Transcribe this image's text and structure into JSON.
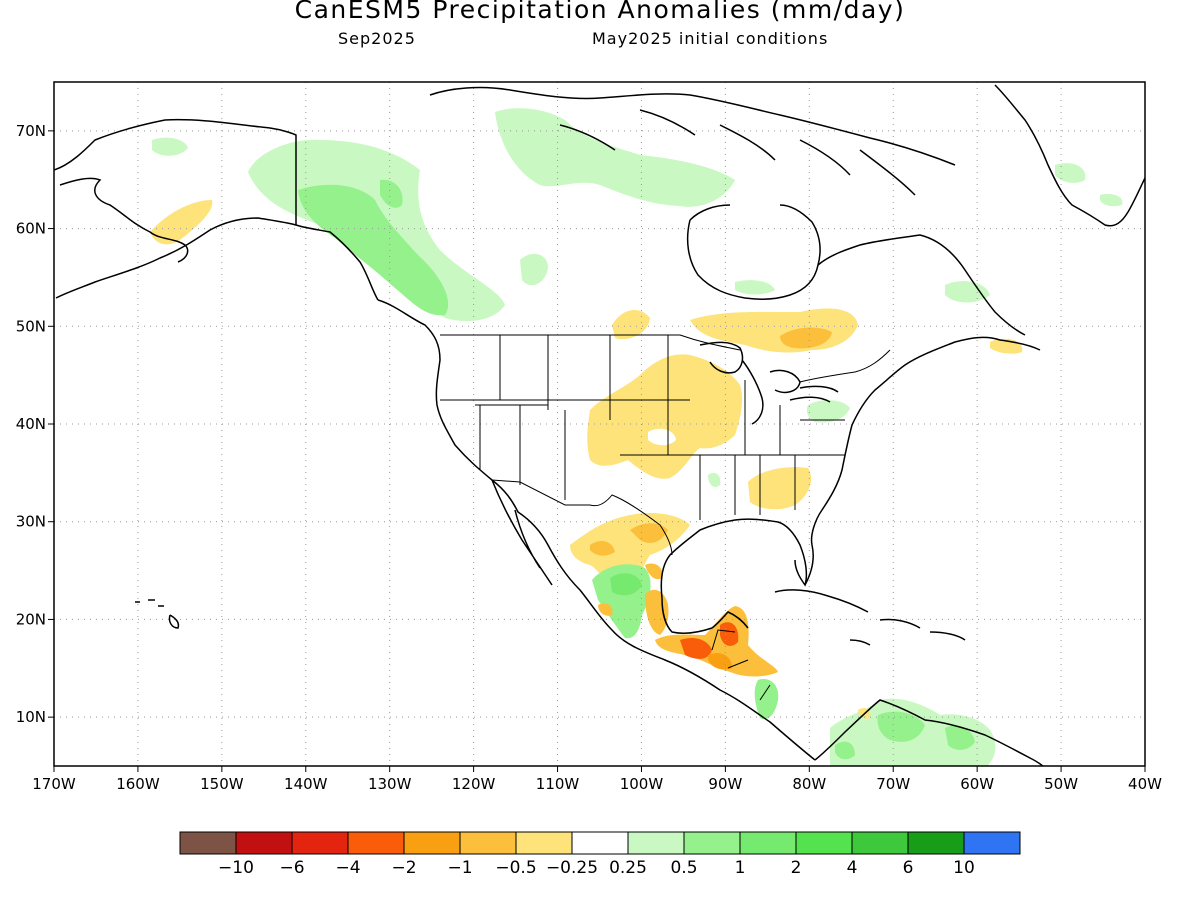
{
  "title": "CanESM5 Precipitation Anomalies (mm/day)",
  "subtitle_left": "Sep2025",
  "subtitle_right": "May2025 initial conditions",
  "map": {
    "lon_range": [
      -170,
      -40
    ],
    "lat_range": [
      5,
      75
    ],
    "gridlines": "dotted",
    "x_tick_labels": [
      "170W",
      "160W",
      "150W",
      "140W",
      "130W",
      "120W",
      "110W",
      "100W",
      "90W",
      "80W",
      "70W",
      "60W",
      "50W",
      "40W"
    ],
    "y_tick_labels": [
      "10N",
      "20N",
      "30N",
      "40N",
      "50N",
      "60N",
      "70N"
    ]
  },
  "colorbar": {
    "colors": [
      "#7d5345",
      "#c20f0f",
      "#e3240f",
      "#fa5d0a",
      "#f99f12",
      "#fbbf3c",
      "#fde37a",
      "#ffffff",
      "#c9f8c2",
      "#95f18b",
      "#76ea6e",
      "#54e34e",
      "#3ec93d",
      "#189d19",
      "#2f74f2"
    ],
    "labels": [
      "−10",
      "−6",
      "−4",
      "−2",
      "−1",
      "−0.5",
      "−0.25",
      "0.25",
      "0.5",
      "1",
      "2",
      "4",
      "6",
      "10"
    ]
  },
  "chart_data": {
    "type": "heatmap",
    "title": "CanESM5 Precipitation Anomalies (mm/day)",
    "subtitle": "Sep2025    May2025 initial conditions",
    "x_range": [
      -170,
      -40
    ],
    "y_range": [
      5,
      75
    ],
    "units": "mm/day",
    "anomaly_regions": [
      {
        "region": "Alaska Panhandle / British Columbia coast",
        "value": "0.5 to 1"
      },
      {
        "region": "Yukon / northern Canada",
        "value": "0.25 to 0.5"
      },
      {
        "region": "Western Alaska",
        "value": "0.25 to 0.5"
      },
      {
        "region": "Southwest Alaska",
        "value": "-0.5 to -0.25"
      },
      {
        "region": "Central US Plains / Midwest",
        "value": "-0.5 to -0.25"
      },
      {
        "region": "Northern Ontario / Quebec",
        "value": "-1 to -0.25"
      },
      {
        "region": "Pennsylvania",
        "value": "0.25 to 0.5"
      },
      {
        "region": "Georgia / Alabama",
        "value": "-0.5 to -0.25"
      },
      {
        "region": "Northern Mexico",
        "value": "-1 to -0.25"
      },
      {
        "region": "Central Mexico",
        "value": "0.5 to 1"
      },
      {
        "region": "Yucatan / Guatemala / Belize",
        "value": "-2 to -0.5"
      },
      {
        "region": "Panama / Costa Rica",
        "value": "0.5 to 1"
      },
      {
        "region": "Northern South America",
        "value": "0.5 to 1"
      }
    ]
  }
}
